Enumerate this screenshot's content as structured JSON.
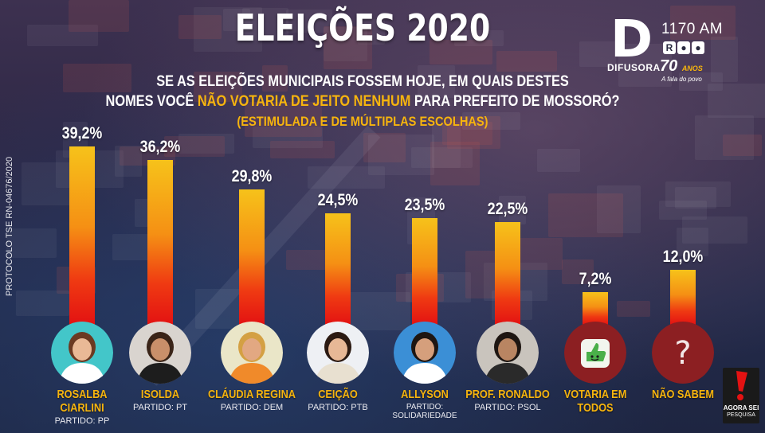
{
  "header": {
    "title": "ELEIÇÕES 2020",
    "question_line1": "SE AS ELEIÇÕES MUNICIPAIS FOSSEM HOJE, EM QUAIS DESTES",
    "question_line2_pre": "NOMES VOCÊ ",
    "question_line2_highlight": "NÃO VOTARIA DE JEITO NENHUM",
    "question_line2_post": " PARA PREFEITO DE MOSSORÓ?",
    "question_line3": "(ESTIMULADA E DE MÚLTIPLAS ESCOLHAS)"
  },
  "protocol": "PROTOCOLO TSE RN-04676/2020",
  "logo": {
    "frequency": "1170 AM",
    "brand": "DIFUSORA",
    "years": "70",
    "years_suffix": "ANOS",
    "tagline": "A fala do povo"
  },
  "pollster": {
    "line1": "AGORA SEI",
    "line2": "PESQUISA"
  },
  "colors": {
    "highlight": "#f6b40e",
    "bar_top": "#f6c21a",
    "bar_bottom": "#e31212",
    "circle_red": "#8c1f22"
  },
  "chart_data": {
    "type": "bar",
    "title": "ELEIÇÕES 2020",
    "ylim": [
      0,
      45
    ],
    "categories": [
      "ROSALBA CIARLINI",
      "ISOLDA",
      "CLÁUDIA REGINA",
      "CEIÇÃO",
      "ALLYSON",
      "PROF. RONALDO",
      "VOTARIA EM TODOS",
      "NÃO SABEM"
    ],
    "values": [
      39.2,
      36.2,
      29.8,
      24.5,
      23.5,
      22.5,
      7.2,
      12.0
    ],
    "value_labels": [
      "39,2%",
      "36,2%",
      "29,8%",
      "24,5%",
      "23,5%",
      "22,5%",
      "7,2%",
      "12,0%"
    ],
    "items": [
      {
        "name_lines": [
          "ROSALBA",
          "CIARLINI"
        ],
        "party": "PARTIDO: PP",
        "avatar": "candidate-photo",
        "avatar_bg": "#43c6c9"
      },
      {
        "name_lines": [
          "ISOLDA"
        ],
        "party": "PARTIDO: PT",
        "avatar": "candidate-photo",
        "avatar_bg": "#d9d4cf"
      },
      {
        "name_lines": [
          "CLÁUDIA REGINA"
        ],
        "party": "PARTIDO: DEM",
        "avatar": "candidate-photo",
        "avatar_bg": "#eae6c8"
      },
      {
        "name_lines": [
          "CEIÇÃO"
        ],
        "party": "PARTIDO: PTB",
        "avatar": "candidate-photo",
        "avatar_bg": "#eef0f4"
      },
      {
        "name_lines": [
          "ALLYSON"
        ],
        "party": "PARTIDO: SOLIDARIEDADE",
        "avatar": "candidate-photo",
        "avatar_bg": "#3b8fd6"
      },
      {
        "name_lines": [
          "PROF. RONALDO"
        ],
        "party": "PARTIDO: PSOL",
        "avatar": "candidate-photo",
        "avatar_bg": "#c9c4bd"
      },
      {
        "name_lines": [
          "VOTARIA EM TODOS"
        ],
        "party": "",
        "avatar": "thumbs-up-icon",
        "avatar_bg": "#8c1f22"
      },
      {
        "name_lines": [
          "NÃO SABEM"
        ],
        "party": "",
        "avatar": "question-mark-icon",
        "avatar_bg": "#8c1f22"
      }
    ]
  }
}
